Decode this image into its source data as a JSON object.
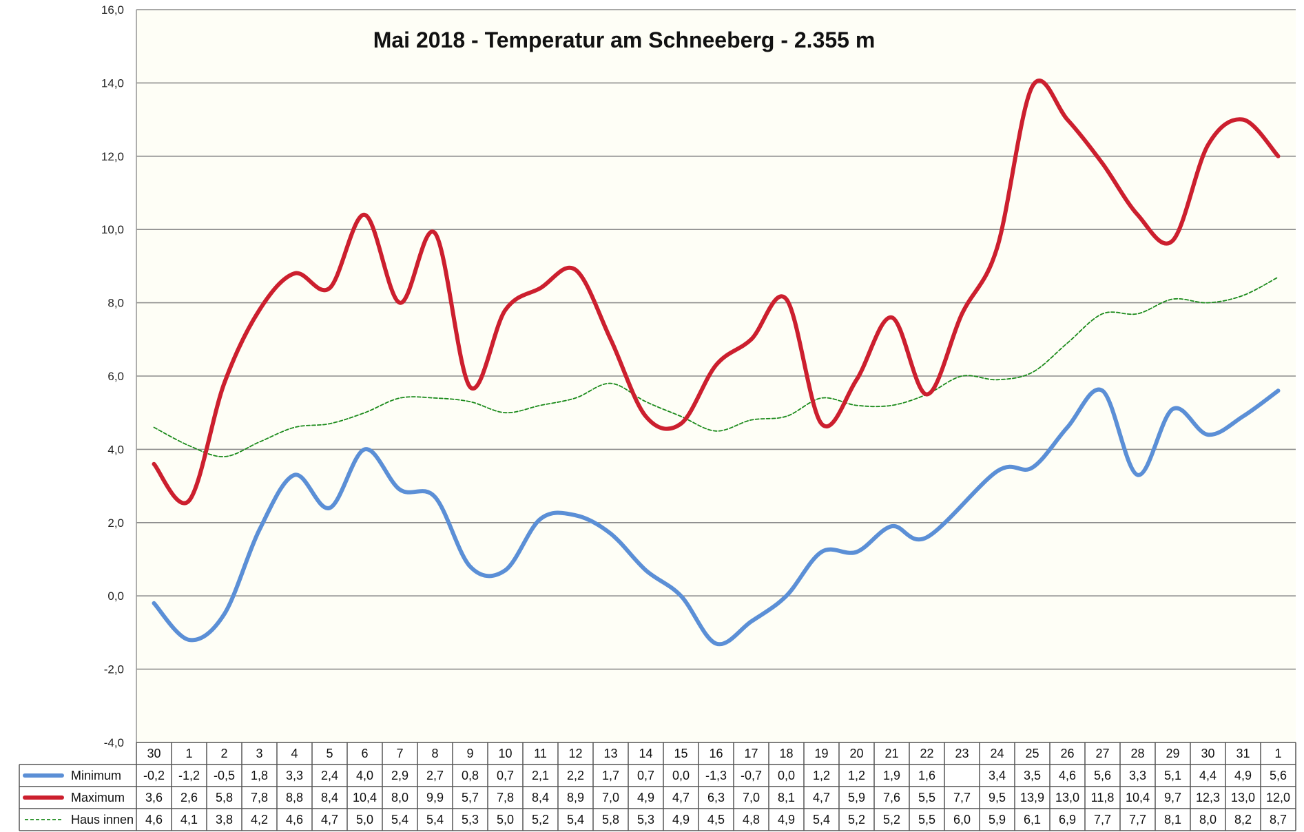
{
  "chart_data": {
    "type": "line",
    "title": "Mai 2018 - Temperatur am Schneeberg - 2.355 m",
    "xlabel": "",
    "ylabel": "",
    "ylim": [
      -4,
      16
    ],
    "y_ticks": [
      "-4,0",
      "-2,0",
      "0,0",
      "2,0",
      "4,0",
      "6,0",
      "8,0",
      "10,0",
      "12,0",
      "14,0",
      "16,0"
    ],
    "grid": true,
    "legend_position": "bottom-left (data table)",
    "categories": [
      "30",
      "1",
      "2",
      "3",
      "4",
      "5",
      "6",
      "7",
      "8",
      "9",
      "10",
      "11",
      "12",
      "13",
      "14",
      "15",
      "16",
      "17",
      "18",
      "19",
      "20",
      "21",
      "22",
      "23",
      "24",
      "25",
      "26",
      "27",
      "28",
      "29",
      "30",
      "31",
      "1"
    ],
    "series": [
      {
        "name": "Minimum",
        "color": "#5b8fd6",
        "style": "solid-thick",
        "values": [
          -0.2,
          -1.2,
          -0.5,
          1.8,
          3.3,
          2.4,
          4.0,
          2.9,
          2.7,
          0.8,
          0.7,
          2.1,
          2.2,
          1.7,
          0.7,
          0.0,
          -1.3,
          -0.7,
          0.0,
          1.2,
          1.2,
          1.9,
          1.6,
          null,
          3.4,
          3.5,
          4.6,
          5.6,
          3.3,
          5.1,
          4.4,
          4.9,
          5.6
        ],
        "labels": [
          "-0,2",
          "-1,2",
          "-0,5",
          "1,8",
          "3,3",
          "2,4",
          "4,0",
          "2,9",
          "2,7",
          "0,8",
          "0,7",
          "2,1",
          "2,2",
          "1,7",
          "0,7",
          "0,0",
          "-1,3",
          "-0,7",
          "0,0",
          "1,2",
          "1,2",
          "1,9",
          "1,6",
          "",
          "3,4",
          "3,5",
          "4,6",
          "5,6",
          "3,3",
          "5,1",
          "4,4",
          "4,9",
          "5,6"
        ]
      },
      {
        "name": "Maximum",
        "color": "#cc1f2e",
        "style": "solid-thick",
        "values": [
          3.6,
          2.6,
          5.8,
          7.8,
          8.8,
          8.4,
          10.4,
          8.0,
          9.9,
          5.7,
          7.8,
          8.4,
          8.9,
          7.0,
          4.9,
          4.7,
          6.3,
          7.0,
          8.1,
          4.7,
          5.9,
          7.6,
          5.5,
          7.7,
          9.5,
          13.9,
          13.0,
          11.8,
          10.4,
          9.7,
          12.3,
          13.0,
          12.0
        ],
        "labels": [
          "3,6",
          "2,6",
          "5,8",
          "7,8",
          "8,8",
          "8,4",
          "10,4",
          "8,0",
          "9,9",
          "5,7",
          "7,8",
          "8,4",
          "8,9",
          "7,0",
          "4,9",
          "4,7",
          "6,3",
          "7,0",
          "8,1",
          "4,7",
          "5,9",
          "7,6",
          "5,5",
          "7,7",
          "9,5",
          "13,9",
          "13,0",
          "11,8",
          "10,4",
          "9,7",
          "12,3",
          "13,0",
          "12,0"
        ]
      },
      {
        "name": "Haus innen",
        "color": "#1a8a1a",
        "style": "dashed-thin",
        "values": [
          4.6,
          4.1,
          3.8,
          4.2,
          4.6,
          4.7,
          5.0,
          5.4,
          5.4,
          5.3,
          5.0,
          5.2,
          5.4,
          5.8,
          5.3,
          4.9,
          4.5,
          4.8,
          4.9,
          5.4,
          5.2,
          5.2,
          5.5,
          6.0,
          5.9,
          6.1,
          6.9,
          7.7,
          7.7,
          8.1,
          8.0,
          8.2,
          8.7
        ],
        "labels": [
          "4,6",
          "4,1",
          "3,8",
          "4,2",
          "4,6",
          "4,7",
          "5,0",
          "5,4",
          "5,4",
          "5,3",
          "5,0",
          "5,2",
          "5,4",
          "5,8",
          "5,3",
          "4,9",
          "4,5",
          "4,8",
          "4,9",
          "5,4",
          "5,2",
          "5,2",
          "5,5",
          "6,0",
          "5,9",
          "6,1",
          "6,9",
          "7,7",
          "7,7",
          "8,1",
          "8,0",
          "8,2",
          "8,7"
        ]
      }
    ],
    "colors": {
      "plot_background": "#fefef6",
      "gridline": "#8c8c8c",
      "border": "#9a9a9a"
    }
  }
}
